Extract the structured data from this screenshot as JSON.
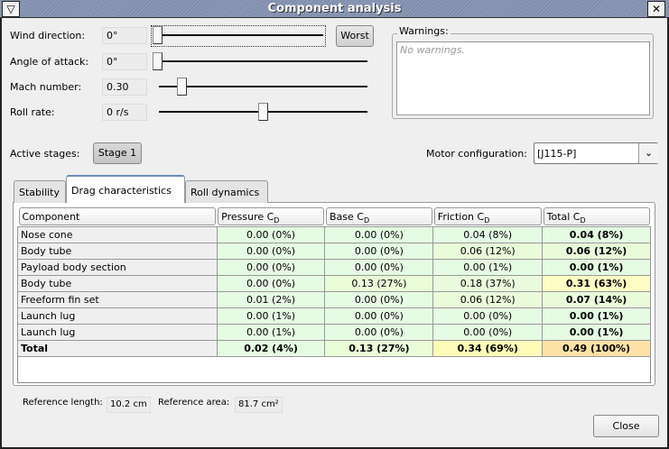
{
  "window": {
    "title": "Component analysis",
    "menu_icon": "window-menu-icon",
    "close_icon": "close-icon"
  },
  "params": [
    {
      "label": "Wind direction:",
      "value": "0°",
      "slider": 0.0
    },
    {
      "label": "Angle of attack:",
      "value": "0°",
      "slider": 0.0
    },
    {
      "label": "Mach number:",
      "value": "0.30",
      "slider": 0.1
    },
    {
      "label": "Roll rate:",
      "value": "0 r/s",
      "slider": 0.5
    }
  ],
  "worst_label": "Worst",
  "warnings": {
    "title": "Warnings:",
    "text": "No warnings."
  },
  "stages": {
    "label": "Active stages:",
    "button": "Stage 1"
  },
  "motor": {
    "label": "Motor configuration:",
    "value": "[J115-P]"
  },
  "tabs": [
    "Stability",
    "Drag characteristics",
    "Roll dynamics"
  ],
  "selected_tab": "Drag characteristics",
  "table": {
    "headers": [
      "Component",
      "Pressure C",
      "Base C",
      "Friction C",
      "Total C"
    ],
    "subscript": "D",
    "rows": [
      [
        "Nose cone",
        "0.00 (0%)",
        "0.00 (0%)",
        "0.04 (8%)",
        "0.04 (8%)"
      ],
      [
        "Body tube",
        "0.00 (0%)",
        "0.00 (0%)",
        "0.06 (12%)",
        "0.06 (12%)"
      ],
      [
        "Payload body section",
        "0.00 (0%)",
        "0.00 (0%)",
        "0.00 (1%)",
        "0.00 (1%)"
      ],
      [
        "Body tube",
        "0.00 (0%)",
        "0.13 (27%)",
        "0.18 (37%)",
        "0.31 (63%)"
      ],
      [
        "Freeform fin set",
        "0.01 (2%)",
        "0.00 (0%)",
        "0.06 (12%)",
        "0.07 (14%)"
      ],
      [
        "Launch lug",
        "0.00 (1%)",
        "0.00 (0%)",
        "0.00 (0%)",
        "0.00 (1%)"
      ],
      [
        "Launch lug",
        "0.00 (1%)",
        "0.00 (0%)",
        "0.00 (0%)",
        "0.00 (1%)"
      ],
      [
        "Total",
        "0.02 (4%)",
        "0.13 (27%)",
        "0.34 (69%)",
        "0.49 (100%)"
      ]
    ],
    "colors": [
      [
        "#efefef",
        "#e6fbe3",
        "#e6fbe3",
        "#e6fbe3",
        "#e6fbe3"
      ],
      [
        "#efefef",
        "#e6fbe3",
        "#e6fbe3",
        "#eafbda",
        "#eafbda"
      ],
      [
        "#efefef",
        "#e6fbe3",
        "#e6fbe3",
        "#e6fbe3",
        "#e6fbe3"
      ],
      [
        "#efefef",
        "#e6fbe3",
        "#eafcd8",
        "#e9fbdc",
        "#fdfdc5"
      ],
      [
        "#efefef",
        "#e6fbe3",
        "#e6fbe3",
        "#eafbda",
        "#eafbda"
      ],
      [
        "#efefef",
        "#e6fbe3",
        "#e6fbe3",
        "#e6fbe3",
        "#e6fbe3"
      ],
      [
        "#efefef",
        "#e6fbe3",
        "#e6fbe3",
        "#e6fbe3",
        "#e6fbe3"
      ],
      [
        "#efefef",
        "#e6fbe3",
        "#eafcd8",
        "#fdfdb8",
        "#fde2a6"
      ]
    ]
  },
  "reference": {
    "length_label": "Reference length:",
    "length": "10.2 cm",
    "area_label": "Reference area:",
    "area": "81.7 cm²"
  },
  "close_label": "Close"
}
